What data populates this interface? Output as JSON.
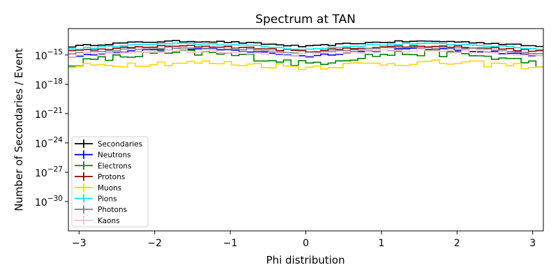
{
  "chart_data": {
    "type": "line",
    "title": "Spectrum at TAN",
    "xlabel": "Phi distribution",
    "ylabel": "Number of Secondaries / Event",
    "xlim": [
      -3.1416,
      3.1416
    ],
    "ylog": true,
    "ylim_exp": [
      -33,
      -12.3
    ],
    "x_ticks": [
      -3,
      -2,
      -1,
      0,
      1,
      2,
      3
    ],
    "x_tick_labels": [
      "−3",
      "−2",
      "−1",
      "0",
      "1",
      "2",
      "3"
    ],
    "y_ticks": [
      {
        "base": "10",
        "exp": "−15"
      },
      {
        "base": "10",
        "exp": "−18"
      },
      {
        "base": "10",
        "exp": "−21"
      },
      {
        "base": "10",
        "exp": "−24"
      },
      {
        "base": "10",
        "exp": "−27"
      },
      {
        "base": "10",
        "exp": "−30"
      }
    ],
    "y_tick_values": [
      -15,
      -18,
      -21,
      -24,
      -27,
      -30
    ],
    "bins": 64,
    "grid": false,
    "legend_position": "lower-left",
    "series": [
      {
        "name": "Secondaries",
        "color": "#000000",
        "base": -14.15,
        "amp": 0.55,
        "noise": 0.08
      },
      {
        "name": "Neutrons",
        "color": "#0000ff",
        "base": -15.15,
        "amp": 0.75,
        "noise": 0.12
      },
      {
        "name": "Electrons",
        "color": "#008000",
        "base": -15.95,
        "amp": 1.15,
        "noise": 0.35
      },
      {
        "name": "Protons",
        "color": "#8b0000",
        "base": -14.65,
        "amp": 0.55,
        "noise": 0.1
      },
      {
        "name": "Muons",
        "color": "#ffd700",
        "base": -16.25,
        "amp": 0.45,
        "noise": 0.3
      },
      {
        "name": "Pions",
        "color": "#00e5ee",
        "base": -14.45,
        "amp": 0.6,
        "noise": 0.08
      },
      {
        "name": "Photons",
        "color": "#808080",
        "base": -14.85,
        "amp": 0.6,
        "noise": 0.1
      },
      {
        "name": "Kaons",
        "color": "#ffc0cb",
        "base": -15.05,
        "amp": 0.5,
        "noise": 0.18
      }
    ]
  }
}
